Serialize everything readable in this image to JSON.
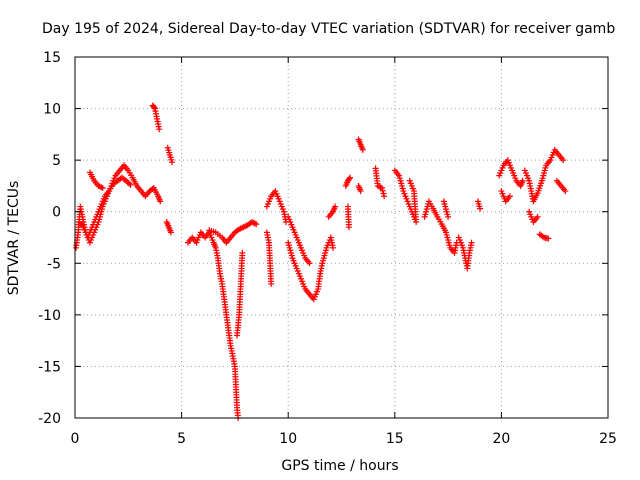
{
  "chart_data": {
    "type": "scatter",
    "title": "Day 195 of 2024, Sidereal Day-to-day VTEC variation (SDTVAR) for receiver gamb",
    "xlabel": "GPS time / hours",
    "ylabel": "SDTVAR / TECUs",
    "xlim": [
      0,
      25
    ],
    "ylim": [
      -20,
      15
    ],
    "xticks": [
      0,
      5,
      10,
      15,
      20,
      25
    ],
    "yticks": [
      -20,
      -15,
      -10,
      -5,
      0,
      5,
      10,
      15
    ],
    "grid": true,
    "marker": "+",
    "series": [
      {
        "name": "SDTVAR",
        "color": "#ff0000",
        "segments": [
          [
            [
              0.05,
              -3.5
            ],
            [
              0.15,
              -2
            ],
            [
              0.25,
              0.5
            ],
            [
              0.35,
              -0.5
            ],
            [
              0.5,
              -2
            ],
            [
              0.7,
              -3
            ],
            [
              0.9,
              -2
            ],
            [
              1.1,
              -1
            ],
            [
              1.3,
              0.5
            ],
            [
              1.5,
              1.5
            ],
            [
              1.7,
              2.5
            ],
            [
              1.9,
              3.5
            ],
            [
              2.1,
              4
            ],
            [
              2.3,
              4.5
            ],
            [
              2.5,
              4
            ],
            [
              2.7,
              3.3
            ],
            [
              2.9,
              2.5
            ],
            [
              3.1,
              2
            ],
            [
              3.3,
              1.5
            ],
            [
              3.5,
              2
            ],
            [
              3.7,
              2.3
            ],
            [
              3.9,
              1.5
            ],
            [
              4.0,
              1
            ]
          ],
          [
            [
              0.2,
              -1
            ],
            [
              0.4,
              -1.5
            ],
            [
              0.6,
              -2.5
            ],
            [
              0.8,
              -1.5
            ],
            [
              1.0,
              -0.5
            ],
            [
              1.2,
              0.5
            ],
            [
              1.4,
              1.5
            ],
            [
              1.6,
              2
            ],
            [
              1.8,
              2.7
            ],
            [
              2.0,
              3
            ],
            [
              2.2,
              3.3
            ],
            [
              2.4,
              3
            ],
            [
              2.6,
              2.6
            ]
          ],
          [
            [
              0.7,
              3.8
            ],
            [
              0.9,
              3
            ],
            [
              1.1,
              2.5
            ],
            [
              1.3,
              2.3
            ]
          ],
          [
            [
              3.65,
              10.3
            ],
            [
              3.75,
              10
            ],
            [
              3.85,
              9
            ],
            [
              3.95,
              8
            ]
          ],
          [
            [
              4.35,
              6.2
            ],
            [
              4.45,
              5.5
            ],
            [
              4.55,
              4.8
            ]
          ],
          [
            [
              4.3,
              -1
            ],
            [
              4.4,
              -1.5
            ],
            [
              4.5,
              -2
            ]
          ],
          [
            [
              5.3,
              -3
            ],
            [
              5.5,
              -2.5
            ],
            [
              5.7,
              -3
            ],
            [
              5.9,
              -2
            ],
            [
              6.1,
              -2.5
            ],
            [
              6.3,
              -2
            ],
            [
              6.5,
              -3
            ],
            [
              6.6,
              -3.5
            ],
            [
              6.7,
              -4.5
            ],
            [
              6.8,
              -6
            ],
            [
              6.9,
              -7
            ],
            [
              7.0,
              -8.5
            ],
            [
              7.1,
              -10
            ],
            [
              7.2,
              -11.5
            ],
            [
              7.3,
              -13
            ],
            [
              7.4,
              -14
            ],
            [
              7.5,
              -15
            ],
            [
              7.55,
              -17
            ],
            [
              7.6,
              -19
            ],
            [
              7.65,
              -20
            ]
          ],
          [
            [
              6.3,
              -1.8
            ],
            [
              6.6,
              -2
            ],
            [
              6.9,
              -2.5
            ],
            [
              7.1,
              -3
            ],
            [
              7.3,
              -2.5
            ],
            [
              7.5,
              -2
            ],
            [
              7.7,
              -1.7
            ],
            [
              7.9,
              -1.5
            ],
            [
              8.1,
              -1.3
            ],
            [
              8.3,
              -1
            ],
            [
              8.5,
              -1.2
            ]
          ],
          [
            [
              7.6,
              -12
            ],
            [
              7.7,
              -10
            ],
            [
              7.75,
              -8
            ],
            [
              7.8,
              -6
            ],
            [
              7.85,
              -4
            ]
          ],
          [
            [
              9.0,
              0.5
            ],
            [
              9.2,
              1.5
            ],
            [
              9.4,
              2
            ],
            [
              9.6,
              1
            ],
            [
              9.8,
              0
            ],
            [
              9.9,
              -1
            ]
          ],
          [
            [
              9.0,
              -2
            ],
            [
              9.1,
              -3
            ],
            [
              9.15,
              -5
            ],
            [
              9.2,
              -7
            ]
          ],
          [
            [
              10.0,
              -3
            ],
            [
              10.2,
              -4.5
            ],
            [
              10.4,
              -5.5
            ],
            [
              10.6,
              -6.5
            ],
            [
              10.8,
              -7.5
            ],
            [
              11.0,
              -8
            ],
            [
              11.2,
              -8.5
            ],
            [
              11.4,
              -7.5
            ],
            [
              11.5,
              -6
            ],
            [
              11.6,
              -5
            ],
            [
              11.8,
              -3.5
            ],
            [
              12.0,
              -2.5
            ],
            [
              12.1,
              -3.5
            ]
          ],
          [
            [
              10.0,
              -0.5
            ],
            [
              10.2,
              -1.5
            ],
            [
              10.4,
              -2.5
            ],
            [
              10.6,
              -3.5
            ],
            [
              10.8,
              -4.5
            ],
            [
              11.0,
              -5
            ]
          ],
          [
            [
              11.9,
              -0.5
            ],
            [
              12.1,
              0
            ],
            [
              12.2,
              0.5
            ]
          ],
          [
            [
              12.7,
              2.5
            ],
            [
              12.8,
              3
            ],
            [
              12.9,
              3.3
            ]
          ],
          [
            [
              12.8,
              0.5
            ],
            [
              12.85,
              -1.5
            ]
          ],
          [
            [
              13.3,
              7
            ],
            [
              13.4,
              6.5
            ],
            [
              13.5,
              6
            ]
          ],
          [
            [
              13.3,
              2.5
            ],
            [
              13.4,
              2
            ]
          ],
          [
            [
              14.1,
              4.2
            ],
            [
              14.2,
              2.5
            ],
            [
              14.4,
              2.3
            ],
            [
              14.5,
              1.5
            ]
          ],
          [
            [
              15.0,
              4
            ],
            [
              15.2,
              3.5
            ],
            [
              15.4,
              2
            ],
            [
              15.6,
              1
            ],
            [
              15.8,
              0
            ],
            [
              16.0,
              -1
            ],
            [
              15.9,
              2
            ],
            [
              15.7,
              3
            ]
          ],
          [
            [
              16.4,
              -0.5
            ],
            [
              16.6,
              1
            ],
            [
              16.8,
              0.3
            ],
            [
              17.0,
              -0.5
            ],
            [
              17.2,
              -1.2
            ],
            [
              17.4,
              -2
            ],
            [
              17.6,
              -3.5
            ],
            [
              17.8,
              -4
            ],
            [
              17.9,
              -3
            ]
          ],
          [
            [
              17.3,
              1
            ],
            [
              17.5,
              -0.5
            ]
          ],
          [
            [
              18.0,
              -2.5
            ],
            [
              18.2,
              -3.5
            ],
            [
              18.3,
              -4.5
            ],
            [
              18.4,
              -5.5
            ],
            [
              18.5,
              -4
            ],
            [
              18.6,
              -3
            ]
          ],
          [
            [
              18.9,
              1
            ],
            [
              19.0,
              0.3
            ]
          ],
          [
            [
              19.9,
              3.5
            ],
            [
              20.1,
              4.5
            ],
            [
              20.3,
              5
            ],
            [
              20.5,
              4
            ],
            [
              20.7,
              3
            ],
            [
              20.9,
              2.5
            ],
            [
              21.0,
              3
            ]
          ],
          [
            [
              20.0,
              2
            ],
            [
              20.2,
              1
            ],
            [
              20.4,
              1.5
            ]
          ],
          [
            [
              21.1,
              4
            ],
            [
              21.3,
              3
            ],
            [
              21.5,
              1
            ],
            [
              21.7,
              1.8
            ],
            [
              21.9,
              3
            ],
            [
              22.1,
              4.5
            ],
            [
              22.3,
              5
            ],
            [
              22.5,
              6
            ],
            [
              22.7,
              5.5
            ],
            [
              22.9,
              5
            ]
          ],
          [
            [
              21.3,
              0
            ],
            [
              21.5,
              -1
            ],
            [
              21.7,
              -0.5
            ]
          ],
          [
            [
              21.8,
              -2.2
            ],
            [
              22.0,
              -2.5
            ],
            [
              22.2,
              -2.6
            ]
          ],
          [
            [
              22.6,
              3
            ],
            [
              22.8,
              2.5
            ],
            [
              23.0,
              2
            ]
          ]
        ]
      }
    ]
  }
}
